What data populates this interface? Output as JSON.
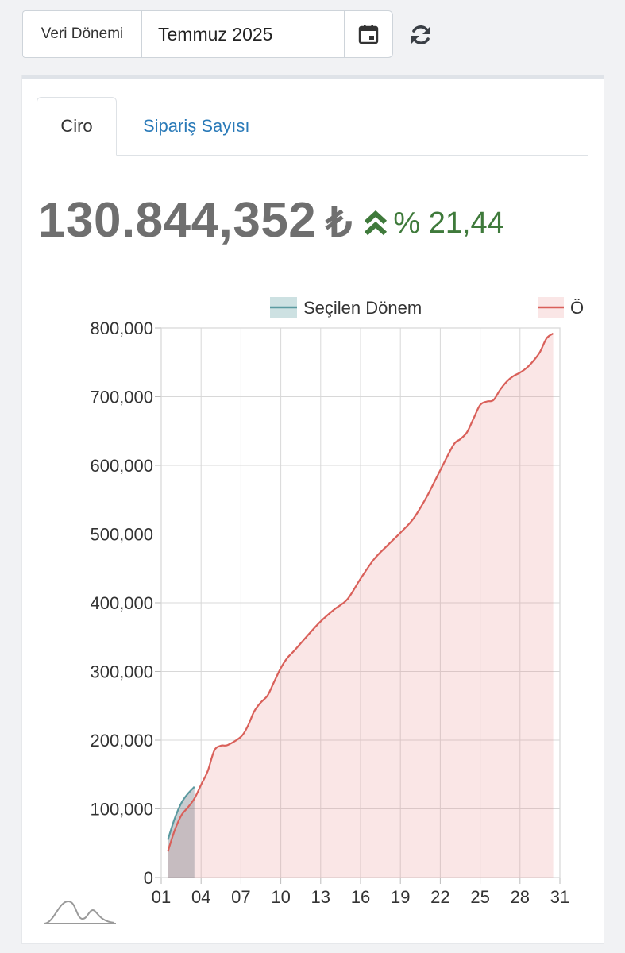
{
  "filter": {
    "label": "Veri Dönemi",
    "value": "Temmuz 2025"
  },
  "tabs": {
    "active": "Ciro",
    "other": "Sipariş Sayısı"
  },
  "kpi": {
    "value": "130.844,352",
    "currency": "₺",
    "change": "% 21,44",
    "change_color": "#3f7a3b"
  },
  "icons": [
    "calendar-icon",
    "refresh-icon",
    "double-chevron-up-icon",
    "chart-logo-icon"
  ],
  "chart_data": {
    "type": "area",
    "title": "",
    "xlabel": "",
    "ylabel": "",
    "ylim": [
      0,
      800000
    ],
    "yticks": [
      "0",
      "100,000",
      "200,000",
      "300,000",
      "400,000",
      "500,000",
      "600,000",
      "700,000",
      "800,000"
    ],
    "xticks": [
      "01",
      "04",
      "07",
      "10",
      "13",
      "16",
      "19",
      "22",
      "25",
      "28",
      "31"
    ],
    "grid": true,
    "legend_placement": "top",
    "series": [
      {
        "name": "Seçilen Dönem",
        "color": "#5b9aa0",
        "x": [
          1.5,
          2,
          2.5,
          3,
          3.5
        ],
        "values": [
          55000,
          85000,
          108000,
          122000,
          132000
        ]
      },
      {
        "name": "Ö",
        "color": "#d9605a",
        "x": [
          1.5,
          2,
          2.5,
          3,
          3.5,
          4,
          4.5,
          5,
          5.5,
          6,
          7,
          7.5,
          8,
          8.5,
          9,
          9.5,
          10,
          10.5,
          11,
          12,
          13,
          14,
          15,
          16,
          17,
          18,
          19,
          20,
          21,
          22,
          23,
          23.5,
          24,
          24.5,
          25,
          25.5,
          26,
          26.5,
          27,
          27.5,
          28,
          28.5,
          29,
          29.5,
          30,
          30.5
        ],
        "values": [
          38000,
          68000,
          90000,
          102000,
          115000,
          135000,
          155000,
          185000,
          192000,
          193000,
          205000,
          220000,
          242000,
          255000,
          265000,
          285000,
          305000,
          320000,
          330000,
          352000,
          373000,
          390000,
          405000,
          435000,
          463000,
          483000,
          502000,
          523000,
          555000,
          593000,
          630000,
          638000,
          648000,
          668000,
          688000,
          693000,
          695000,
          710000,
          722000,
          730000,
          735000,
          742000,
          752000,
          765000,
          785000,
          792000
        ]
      }
    ]
  }
}
